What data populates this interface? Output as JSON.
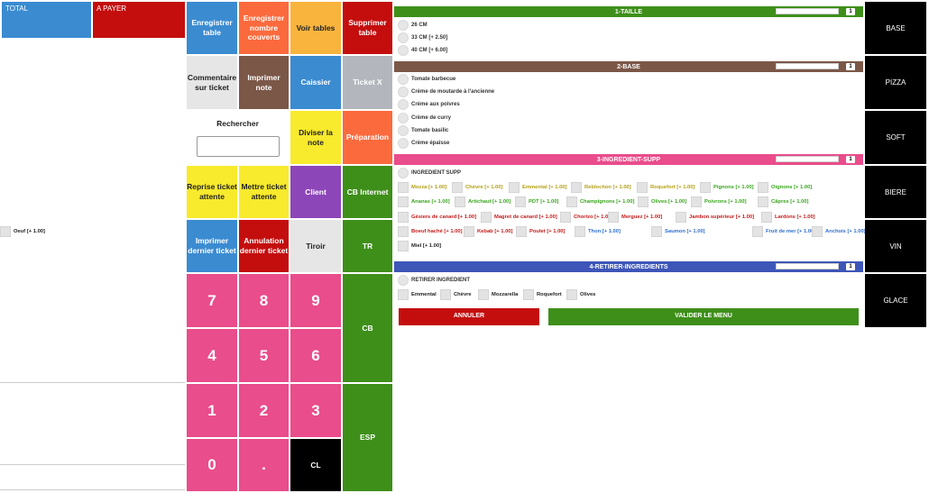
{
  "totals": {
    "total_label": "TOTAL",
    "apayer_label": "A PAYER"
  },
  "keypad": {
    "enregistrer_table": "Enregistrer table",
    "enregistrer_couverts": "Enregistrer nombre couverts",
    "voir_tables": "Voir tables",
    "supprimer_table": "Supprimer table",
    "commentaire": "Commentaire sur ticket",
    "imprimer_note": "Imprimer note",
    "caissier": "Caissier",
    "ticket_x": "Ticket X",
    "rechercher": "Rechercher",
    "diviser_note": "Diviser la note",
    "preparation": "Préparation",
    "reprise_ticket": "Reprise ticket attente",
    "mettre_ticket": "Mettre ticket attente",
    "client": "Client",
    "cb_internet": "CB Internet",
    "imprimer_dernier": "Imprimer dernier ticket",
    "annulation_dernier": "Annulation dernier ticket",
    "tiroir": "Tiroir",
    "tr": "TR",
    "cb": "CB",
    "esp": "ESP",
    "cl": "CL",
    "n7": "7",
    "n8": "8",
    "n9": "9",
    "n4": "4",
    "n5": "5",
    "n6": "6",
    "n1": "1",
    "n2": "2",
    "n3": "3",
    "n0": "0",
    "dot": "."
  },
  "sections": {
    "taille": {
      "title": "1-TAILLE",
      "badge": "1",
      "color": "#3e8f1a",
      "options": [
        "26 CM",
        "33 CM [+ 2.50]",
        "40 CM [+ 6.00]"
      ]
    },
    "base": {
      "title": "2-BASE",
      "badge": "1",
      "color": "#7b5748",
      "options": [
        "Tomate barbecue",
        "Crème de moutarde à l'ancienne",
        "Crème aux poivres",
        "Crème de curry",
        "Tomate basilic",
        "Crème épaisse"
      ]
    },
    "supp": {
      "title": "3-INGREDIENT-SUPP",
      "badge": "1",
      "color": "#e94d8b",
      "radio_label": "INGREDIENT SUPP",
      "rows": [
        [
          {
            "label": "Mozza [+ 1.00]",
            "color": "#b3a015"
          },
          {
            "label": "Chèvre [+ 1.00]",
            "color": "#b3a015"
          },
          {
            "label": "Emmental [+ 1.00]",
            "color": "#b3a015"
          },
          {
            "label": "Reblochon [+ 1.00]",
            "color": "#b3a015"
          },
          {
            "label": "Roquefort [+ 1.00]",
            "color": "#b3a015"
          },
          {
            "label": "Pignons [+ 1.00]",
            "color": "#3aa51f"
          },
          {
            "label": "Oignons [+ 1.00]",
            "color": "#3aa51f"
          }
        ],
        [
          {
            "label": "Ananas [+ 1.00]",
            "color": "#3aa51f"
          },
          {
            "label": "Artichaut [+ 1.00]",
            "color": "#3aa51f"
          },
          {
            "label": "PDT [+ 1.00]",
            "color": "#3aa51f"
          },
          {
            "label": "Champignons [+ 1.00]",
            "color": "#3aa51f"
          },
          {
            "label": "Olives [+ 1.00]",
            "color": "#3aa51f"
          },
          {
            "label": "Poivrons [+ 1.00]",
            "color": "#3aa51f"
          },
          {
            "label": "Câpres [+ 1.00]",
            "color": "#3aa51f"
          }
        ],
        [
          {
            "label": "Gésiers de canard [+ 1.00]",
            "color": "#c41a1a"
          },
          {
            "label": "Magret de canard [+ 1.00]",
            "color": "#c41a1a"
          },
          {
            "label": "Chorizo [+ 1.00]",
            "color": "#c41a1a"
          },
          {
            "label": "Merguez [+ 1.00]",
            "color": "#c41a1a"
          },
          {
            "label": "Jambon supérieur [+ 1.00]",
            "color": "#c41a1a"
          },
          {
            "label": "Lardons [+ 1.00]",
            "color": "#c41a1a"
          }
        ],
        [
          {
            "label": "Boeuf haché [+ 1.00]",
            "color": "#c41a1a"
          },
          {
            "label": "Kebab [+ 1.00]",
            "color": "#c41a1a"
          },
          {
            "label": "Poulet [+ 1.00]",
            "color": "#c41a1a"
          },
          {
            "label": "Thon [+ 1.00]",
            "color": "#2f6fd1"
          },
          {
            "label": "Saumon [+ 1.00]",
            "color": "#2f6fd1"
          },
          {
            "label": "Fruit de mer [+ 1.00]",
            "color": "#2f6fd1"
          },
          {
            "label": "Anchois [+ 1.00]",
            "color": "#2f6fd1"
          },
          {
            "label": "Oeuf [+ 1.00]",
            "color": "#222222"
          }
        ],
        [
          {
            "label": "Miel [+ 1.00]",
            "color": "#222222"
          }
        ]
      ]
    },
    "retirer": {
      "title": "4-RETIRER-INGREDIENTS",
      "badge": "1",
      "color": "#3e56b8",
      "radio_label": "RETIRER INGREDIENT",
      "items": [
        "Emmental",
        "Chèvre",
        "Mozzarella",
        "Roquefort",
        "Olives"
      ]
    }
  },
  "actions": {
    "annuler": "ANNULER",
    "valider": "VALIDER LE MENU"
  },
  "categories": [
    "BASE",
    "PIZZA",
    "SOFT",
    "BIERE",
    "VIN",
    "GLACE"
  ],
  "search": {
    "placeholder": ""
  }
}
